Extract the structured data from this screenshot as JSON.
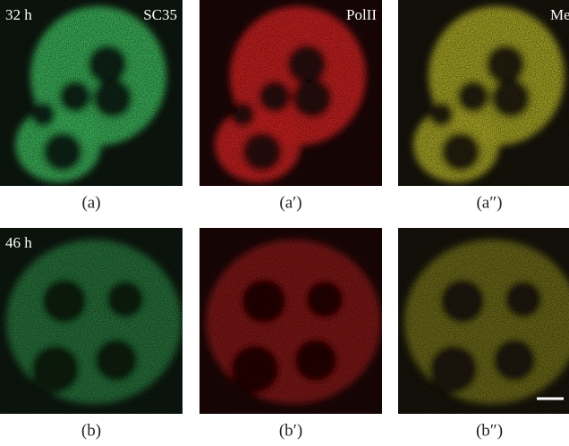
{
  "rows": [
    {
      "time": "32 h",
      "panels": [
        {
          "channel": "SC35",
          "caption": "(a)"
        },
        {
          "channel": "PolII",
          "caption": "(a′)"
        },
        {
          "channel": "Merge",
          "caption": "(a″)"
        }
      ]
    },
    {
      "time": "46 h",
      "panels": [
        {
          "caption": "(b)"
        },
        {
          "caption": "(b′)"
        },
        {
          "caption": "(b″)"
        }
      ]
    }
  ]
}
